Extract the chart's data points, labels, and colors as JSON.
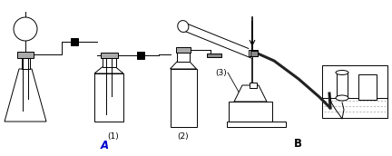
{
  "bg_color": "#ffffff",
  "line_color": "#000000",
  "label_A": "A",
  "label_B": "B",
  "label_1": "(1)",
  "label_2": "(2)",
  "label_3": "(3)",
  "label_A_color": "#0000cc",
  "label_B_color": "#000000",
  "fig_width": 4.32,
  "fig_height": 1.72,
  "dpi": 100
}
